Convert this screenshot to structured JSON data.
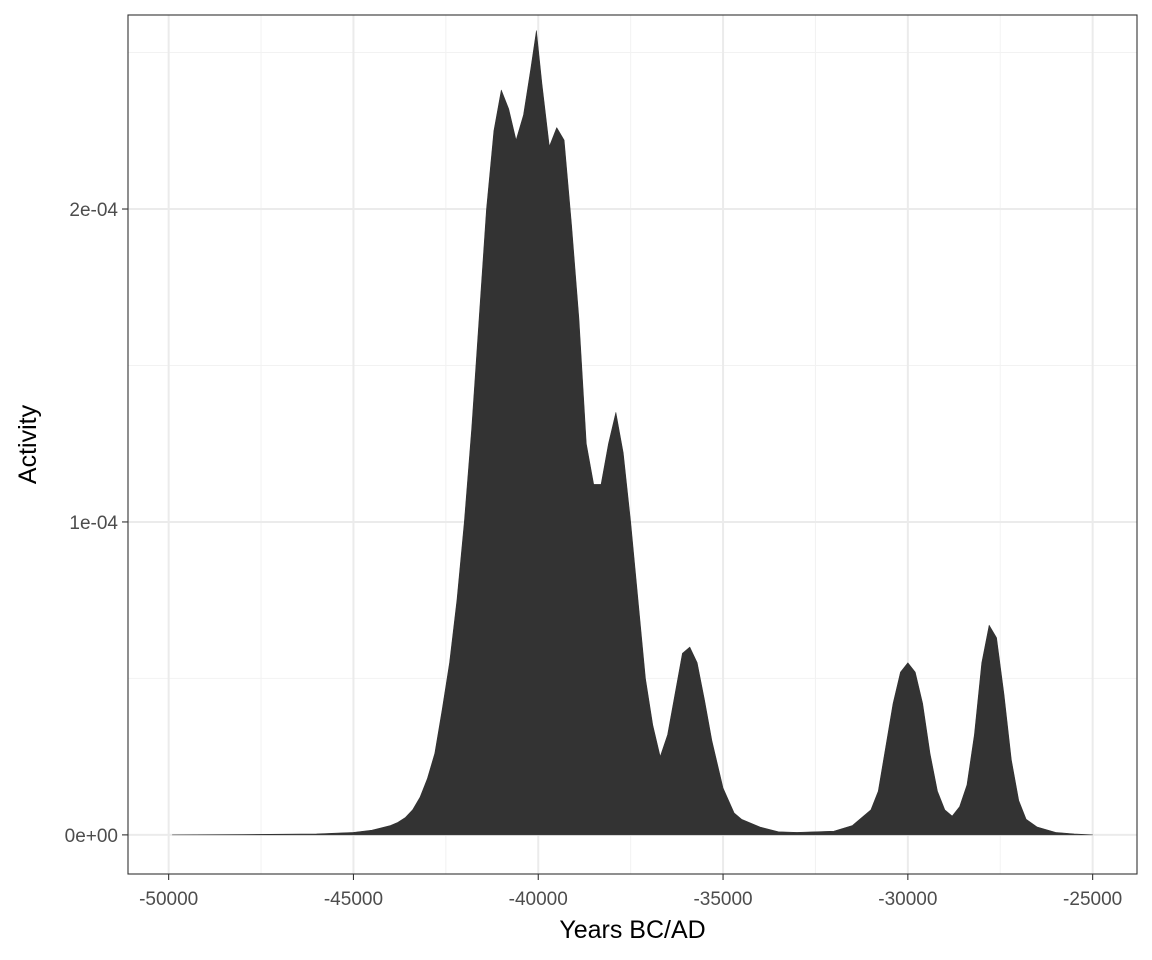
{
  "chart_data": {
    "type": "area",
    "title": "",
    "xlabel": "Years BC/AD",
    "ylabel": "Activity",
    "xlim": [
      -51100,
      -23800
    ],
    "ylim": [
      -1.25e-05,
      0.000262
    ],
    "x_ticks": [
      -50000,
      -45000,
      -40000,
      -35000,
      -30000,
      -25000
    ],
    "x_tick_labels": [
      "-50000",
      "-45000",
      "-40000",
      "-35000",
      "-30000",
      "-25000"
    ],
    "y_ticks": [
      0,
      0.0001,
      0.0002
    ],
    "y_tick_labels": [
      "0e+00",
      "1e-04",
      "2e-04"
    ],
    "grid": true,
    "theme": "bw",
    "colors": {
      "fill": "#333333",
      "panel_border": "#333333",
      "grid_major": "#ebebeb",
      "grid_minor": "#f2f2f2",
      "background": "#ffffff"
    },
    "series": [
      {
        "x": [
          -49900,
          -48000,
          -46000,
          -45000,
          -44500,
          -44000,
          -43800,
          -43600,
          -43400,
          -43200,
          -43000,
          -42800,
          -42600,
          -42400,
          -42200,
          -42000,
          -41800,
          -41600,
          -41400,
          -41200,
          -41000,
          -40800,
          -40600,
          -40400,
          -40200,
          -40050,
          -39900,
          -39700,
          -39500,
          -39300,
          -39100,
          -38900,
          -38700,
          -38500,
          -38300,
          -38100,
          -37900,
          -37700,
          -37500,
          -37300,
          -37100,
          -36900,
          -36700,
          -36500,
          -36300,
          -36100,
          -35900,
          -35700,
          -35500,
          -35300,
          -35000,
          -34700,
          -34500,
          -34000,
          -33500,
          -33000,
          -32500,
          -32000,
          -31500,
          -31200,
          -31000,
          -30800,
          -30600,
          -30400,
          -30200,
          -30000,
          -29800,
          -29600,
          -29400,
          -29200,
          -29000,
          -28800,
          -28600,
          -28400,
          -28200,
          -28000,
          -27800,
          -27600,
          -27400,
          -27200,
          -27000,
          -26800,
          -26500,
          -26000,
          -25500,
          -25000
        ],
        "y": [
          0,
          1e-07,
          3e-07,
          8e-07,
          1.5e-06,
          3e-06,
          4e-06,
          5.5e-06,
          8e-06,
          1.2e-05,
          1.8e-05,
          2.6e-05,
          4e-05,
          5.5e-05,
          7.5e-05,
          0.0001,
          0.00013,
          0.000165,
          0.0002,
          0.000225,
          0.000238,
          0.000232,
          0.000222,
          0.00023,
          0.000245,
          0.000257,
          0.00024,
          0.00022,
          0.000226,
          0.000222,
          0.000195,
          0.000165,
          0.000125,
          0.000112,
          0.000112,
          0.000125,
          0.000135,
          0.000122,
          0.0001,
          7.5e-05,
          5e-05,
          3.5e-05,
          2.5e-05,
          3.2e-05,
          4.5e-05,
          5.8e-05,
          6e-05,
          5.5e-05,
          4.3e-05,
          3e-05,
          1.5e-05,
          7e-06,
          5e-06,
          2.5e-06,
          1e-06,
          8e-07,
          1e-06,
          1.2e-06,
          3e-06,
          6e-06,
          8e-06,
          1.4e-05,
          2.8e-05,
          4.2e-05,
          5.2e-05,
          5.5e-05,
          5.2e-05,
          4.2e-05,
          2.6e-05,
          1.4e-05,
          8e-06,
          6e-06,
          9e-06,
          1.6e-05,
          3.2e-05,
          5.5e-05,
          6.7e-05,
          6.3e-05,
          4.5e-05,
          2.4e-05,
          1.1e-05,
          5e-06,
          2.5e-06,
          8e-07,
          3e-07,
          0
        ]
      }
    ]
  }
}
